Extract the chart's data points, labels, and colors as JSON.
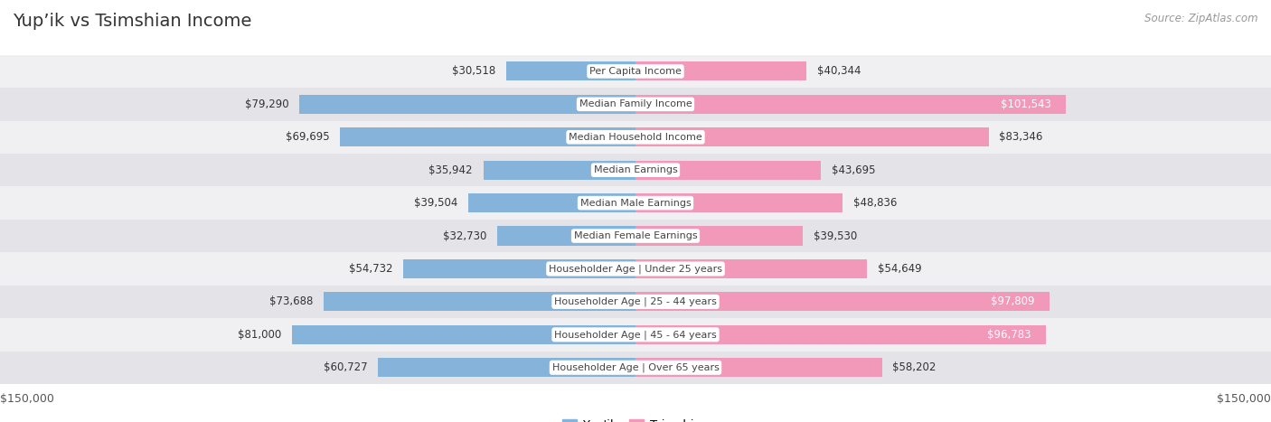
{
  "title": "Yup’ik vs Tsimshian Income",
  "source": "Source: ZipAtlas.com",
  "categories": [
    "Per Capita Income",
    "Median Family Income",
    "Median Household Income",
    "Median Earnings",
    "Median Male Earnings",
    "Median Female Earnings",
    "Householder Age | Under 25 years",
    "Householder Age | 25 - 44 years",
    "Householder Age | 45 - 64 years",
    "Householder Age | Over 65 years"
  ],
  "yupik_values": [
    30518,
    79290,
    69695,
    35942,
    39504,
    32730,
    54732,
    73688,
    81000,
    60727
  ],
  "tsimshian_values": [
    40344,
    101543,
    83346,
    43695,
    48836,
    39530,
    54649,
    97809,
    96783,
    58202
  ],
  "yupik_labels": [
    "$30,518",
    "$79,290",
    "$69,695",
    "$35,942",
    "$39,504",
    "$32,730",
    "$54,732",
    "$73,688",
    "$81,000",
    "$60,727"
  ],
  "tsimshian_labels": [
    "$40,344",
    "$101,543",
    "$83,346",
    "$43,695",
    "$48,836",
    "$39,530",
    "$54,649",
    "$97,809",
    "$96,783",
    "$58,202"
  ],
  "yupik_color": "#85b3d9",
  "tsimshian_color": "#f298b8",
  "row_bg_odd": "#f0f0f2",
  "row_bg_even": "#e4e4e8",
  "max_val": 150000,
  "legend_yupik": "Yup'ik",
  "legend_tsimshian": "Tsimshian",
  "background_color": "#ffffff",
  "title_fontsize": 14,
  "value_fontsize": 8.5,
  "cat_fontsize": 8,
  "axis_label": "$150,000",
  "white_label_threshold": 0.62,
  "bar_height": 0.58
}
